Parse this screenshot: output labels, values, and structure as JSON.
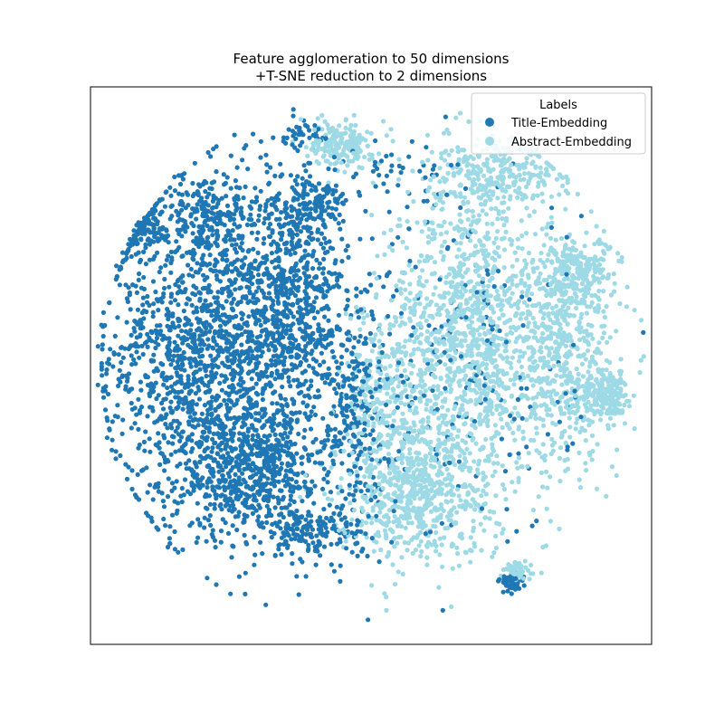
{
  "chart_data": {
    "type": "scatter",
    "title_lines": [
      "Feature agglomeration to 50 dimensions",
      "+T-SNE reduction to 2 dimensions"
    ],
    "xlabel": "",
    "ylabel": "",
    "xlim": [
      -100,
      100
    ],
    "ylim": [
      -100,
      100
    ],
    "axis_ticks": "none",
    "grid": false,
    "legend": {
      "title": "Labels",
      "placement": "top-right",
      "entries": [
        "Title-Embedding",
        "Abstract-Embedding"
      ]
    },
    "series": [
      {
        "name": "Title-Embedding",
        "color": "#1f77b4",
        "regions": [
          {
            "cx": -60,
            "cy": 5,
            "rx": 30,
            "ry": 55,
            "n": 1500
          },
          {
            "cx": -28,
            "cy": 20,
            "rx": 18,
            "ry": 40,
            "n": 700
          },
          {
            "cx": -40,
            "cy": -38,
            "rx": 28,
            "ry": 22,
            "n": 600
          },
          {
            "cx": -58,
            "cy": 55,
            "rx": 14,
            "ry": 10,
            "n": 150
          },
          {
            "cx": -82,
            "cy": 48,
            "rx": 9,
            "ry": 8,
            "n": 120
          },
          {
            "cx": -22,
            "cy": 58,
            "rx": 14,
            "ry": 9,
            "n": 150
          },
          {
            "cx": -20,
            "cy": -60,
            "rx": 16,
            "ry": 9,
            "n": 160
          },
          {
            "cx": -5,
            "cy": -15,
            "rx": 10,
            "ry": 30,
            "n": 200
          },
          {
            "cx": 30,
            "cy": 0,
            "rx": 40,
            "ry": 60,
            "n": 220
          },
          {
            "cx": 50,
            "cy": -78,
            "rx": 4,
            "ry": 3,
            "n": 45
          },
          {
            "cx": -25,
            "cy": 82,
            "rx": 8,
            "ry": 5,
            "n": 40
          },
          {
            "cx": 10,
            "cy": 70,
            "rx": 25,
            "ry": 8,
            "n": 40
          }
        ]
      },
      {
        "name": "Abstract-Embedding",
        "color": "#9edae5",
        "regions": [
          {
            "cx": 35,
            "cy": 10,
            "rx": 25,
            "ry": 50,
            "n": 1200
          },
          {
            "cx": 15,
            "cy": -45,
            "rx": 25,
            "ry": 22,
            "n": 650
          },
          {
            "cx": 70,
            "cy": 5,
            "rx": 15,
            "ry": 40,
            "n": 600
          },
          {
            "cx": 85,
            "cy": -10,
            "rx": 6,
            "ry": 8,
            "n": 160
          },
          {
            "cx": 45,
            "cy": 68,
            "rx": 22,
            "ry": 12,
            "n": 300
          },
          {
            "cx": -10,
            "cy": 80,
            "rx": 10,
            "ry": 8,
            "n": 180
          },
          {
            "cx": 5,
            "cy": -10,
            "rx": 12,
            "ry": 25,
            "n": 250
          },
          {
            "cx": 75,
            "cy": 35,
            "rx": 12,
            "ry": 10,
            "n": 180
          },
          {
            "cx": 52,
            "cy": -74,
            "rx": 6,
            "ry": 3,
            "n": 55
          }
        ]
      }
    ]
  }
}
